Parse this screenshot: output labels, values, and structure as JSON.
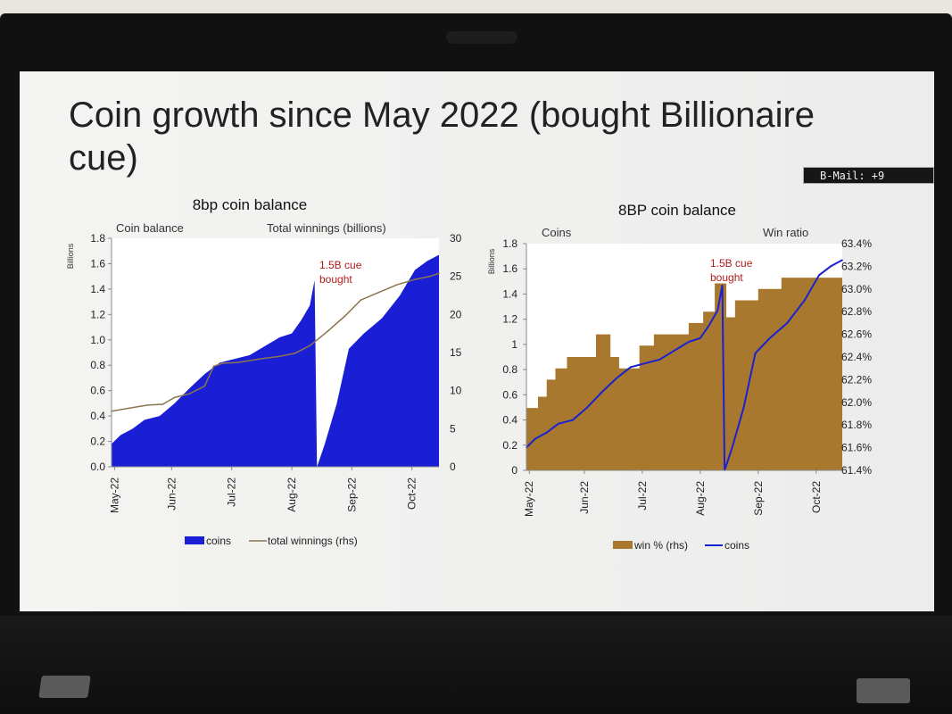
{
  "slide": {
    "title": "Coin growth since May 2022 (bought Billionaire cue)",
    "title_line1": "Coin growth since May 2022 (bought Billionaire",
    "title_line2": "cue)",
    "badge": "B-Mail: +9"
  },
  "colors": {
    "coins_fill": "#1a1fd6",
    "winnings_line": "#8a7450",
    "win_fill": "#a8782e",
    "coins_line": "#1a22d0",
    "annotation": "#b01a1a"
  },
  "chart_data": [
    {
      "type": "area",
      "title": "8bp coin balance",
      "left_label": "Coin balance",
      "right_label": "Total winnings (billions)",
      "ylabel_unit": "Billions",
      "ylim": [
        0,
        1.8
      ],
      "y_ticks": [
        "0.0",
        "0.2",
        "0.4",
        "0.6",
        "0.8",
        "1.0",
        "1.2",
        "1.4",
        "1.6",
        "1.8"
      ],
      "y2lim": [
        0,
        30
      ],
      "y2_ticks": [
        "0",
        "5",
        "10",
        "15",
        "20",
        "25",
        "30"
      ],
      "x_ticks": [
        "May-22",
        "Jun-22",
        "Jul-22",
        "Aug-22",
        "Sep-22",
        "Oct-22"
      ],
      "x_tick_pos": [
        0.05,
        1.0,
        2.0,
        3.0,
        4.0,
        5.0
      ],
      "xlim": [
        0,
        5.45
      ],
      "annotation": "1.5B cue bought",
      "annotation_lines": [
        "1.5B cue",
        "bought"
      ],
      "legend": [
        "coins",
        "total winnings (rhs)"
      ],
      "series": [
        {
          "name": "coins",
          "kind": "area",
          "x": [
            0.0,
            0.15,
            0.35,
            0.55,
            0.8,
            1.05,
            1.3,
            1.55,
            1.8,
            2.05,
            2.3,
            2.55,
            2.8,
            3.0,
            3.15,
            3.3,
            3.38,
            3.42,
            3.55,
            3.75,
            3.95,
            4.2,
            4.5,
            4.8,
            5.05,
            5.25,
            5.45
          ],
          "values": [
            0.18,
            0.25,
            0.3,
            0.37,
            0.4,
            0.5,
            0.62,
            0.73,
            0.82,
            0.85,
            0.88,
            0.95,
            1.02,
            1.05,
            1.15,
            1.27,
            1.47,
            0.0,
            0.18,
            0.5,
            0.93,
            1.05,
            1.17,
            1.35,
            1.55,
            1.62,
            1.67
          ]
        },
        {
          "name": "total winnings (rhs)",
          "kind": "line",
          "x": [
            0.0,
            0.3,
            0.6,
            0.85,
            1.05,
            1.3,
            1.55,
            1.7,
            1.85,
            2.1,
            2.5,
            2.8,
            3.05,
            3.3,
            3.6,
            3.9,
            4.15,
            4.45,
            4.75,
            5.05,
            5.3,
            5.45
          ],
          "values": [
            7.3,
            7.7,
            8.1,
            8.2,
            9.1,
            9.6,
            10.6,
            13.2,
            13.6,
            13.7,
            14.2,
            14.5,
            14.9,
            15.9,
            17.8,
            19.9,
            21.9,
            22.9,
            23.9,
            24.6,
            25.0,
            25.4
          ]
        }
      ]
    },
    {
      "type": "area",
      "title": "8BP coin balance",
      "left_label": "Coins",
      "right_label": "Win ratio",
      "ylabel_unit": "Billions",
      "ylim": [
        0,
        1.8
      ],
      "y_ticks": [
        "0",
        "0.2",
        "0.4",
        "0.6",
        "0.8",
        "1",
        "1.2",
        "1.4",
        "1.6",
        "1.8"
      ],
      "y2lim": [
        61.4,
        63.4
      ],
      "y2_ticks": [
        "61.4%",
        "61.6%",
        "61.8%",
        "62.0%",
        "62.2%",
        "62.4%",
        "62.6%",
        "62.8%",
        "63.0%",
        "63.2%",
        "63.4%"
      ],
      "x_ticks": [
        "May-22",
        "Jun-22",
        "Jul-22",
        "Aug-22",
        "Sep-22",
        "Oct-22"
      ],
      "x_tick_pos": [
        0.05,
        1.0,
        2.0,
        3.0,
        4.0,
        5.0
      ],
      "xlim": [
        0,
        5.45
      ],
      "annotation": "1.5B cue bought",
      "annotation_lines": [
        "1.5B cue",
        "bought"
      ],
      "legend": [
        "win % (rhs)",
        "coins"
      ],
      "series": [
        {
          "name": "win % (rhs)",
          "kind": "area",
          "x": [
            0.0,
            0.2,
            0.35,
            0.5,
            0.7,
            0.9,
            1.2,
            1.45,
            1.6,
            1.75,
            1.95,
            2.2,
            2.5,
            2.8,
            3.05,
            3.25,
            3.45,
            3.6,
            3.8,
            4.0,
            4.2,
            4.4,
            4.6,
            4.85,
            5.05,
            5.2,
            5.45
          ],
          "values": [
            61.95,
            62.05,
            62.2,
            62.3,
            62.4,
            62.4,
            62.6,
            62.4,
            62.3,
            62.3,
            62.5,
            62.6,
            62.6,
            62.7,
            62.8,
            63.05,
            62.75,
            62.9,
            62.9,
            63.0,
            63.0,
            63.1,
            63.1,
            63.1,
            63.1,
            63.1,
            63.25
          ]
        },
        {
          "name": "coins",
          "kind": "line",
          "x": [
            0.0,
            0.15,
            0.35,
            0.55,
            0.8,
            1.05,
            1.3,
            1.55,
            1.8,
            2.05,
            2.3,
            2.55,
            2.8,
            3.0,
            3.15,
            3.3,
            3.38,
            3.42,
            3.55,
            3.75,
            3.95,
            4.2,
            4.5,
            4.8,
            5.05,
            5.25,
            5.45
          ],
          "values": [
            0.18,
            0.25,
            0.3,
            0.37,
            0.4,
            0.5,
            0.62,
            0.73,
            0.82,
            0.85,
            0.88,
            0.95,
            1.02,
            1.05,
            1.15,
            1.27,
            1.47,
            0.0,
            0.18,
            0.5,
            0.93,
            1.05,
            1.17,
            1.35,
            1.55,
            1.62,
            1.67
          ]
        }
      ]
    }
  ]
}
